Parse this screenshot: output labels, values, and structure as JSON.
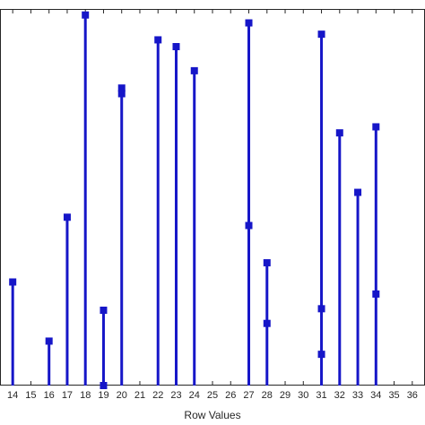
{
  "chart_data": {
    "type": "stem",
    "xlabel": "Row Values",
    "xlim": [
      13.3,
      36.7
    ],
    "ylim": [
      0,
      1.0
    ],
    "xticks": [
      14,
      15,
      16,
      17,
      18,
      19,
      20,
      21,
      22,
      23,
      24,
      25,
      26,
      27,
      28,
      29,
      30,
      31,
      32,
      33,
      34,
      35,
      36
    ],
    "grid": false,
    "colors": {
      "stem": "#1616c8",
      "axis": "#262626",
      "background": "#ffffff"
    },
    "stems": [
      {
        "x": 14,
        "markers": [
          0.275
        ]
      },
      {
        "x": 16,
        "markers": [
          0.118
        ]
      },
      {
        "x": 17,
        "markers": [
          0.447
        ]
      },
      {
        "x": 18,
        "markers": [
          0.984
        ]
      },
      {
        "x": 19,
        "markers": [
          0.2,
          0.0
        ]
      },
      {
        "x": 20,
        "markers": [
          0.79,
          0.775
        ]
      },
      {
        "x": 22,
        "markers": [
          0.918
        ]
      },
      {
        "x": 23,
        "markers": [
          0.9
        ]
      },
      {
        "x": 24,
        "markers": [
          0.836
        ]
      },
      {
        "x": 27,
        "markers": [
          0.963,
          0.425
        ]
      },
      {
        "x": 28,
        "markers": [
          0.326,
          0.165
        ]
      },
      {
        "x": 31,
        "markers": [
          0.933,
          0.204,
          0.083
        ]
      },
      {
        "x": 32,
        "markers": [
          0.671
        ]
      },
      {
        "x": 33,
        "markers": [
          0.513
        ]
      },
      {
        "x": 34,
        "markers": [
          0.687,
          0.243
        ]
      }
    ]
  }
}
